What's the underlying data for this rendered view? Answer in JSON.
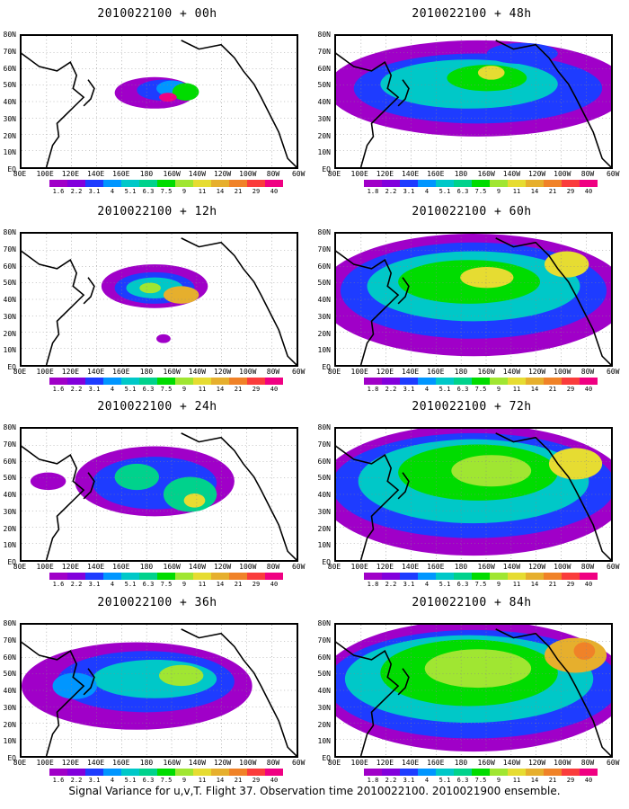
{
  "caption": "Signal Variance for u,v,T. Flight 37. Observation time 2010022100. 2010021900 ensemble.",
  "axes": {
    "y_labels": [
      "80N",
      "70N",
      "60N",
      "50N",
      "40N",
      "30N",
      "20N",
      "10N",
      "EQ"
    ],
    "x_labels": [
      "80E",
      "100E",
      "120E",
      "140E",
      "160E",
      "180",
      "160W",
      "140W",
      "120W",
      "100W",
      "80W",
      "60W"
    ]
  },
  "colorbar": {
    "labels": [
      "1.8",
      "2.2",
      "3.1",
      "4",
      "5.1",
      "6.3",
      "7.5",
      "9",
      "11",
      "14",
      "21",
      "29",
      "40"
    ],
    "left_colorbar_first_label": "1.6",
    "colors": [
      "#a000c8",
      "#8200dc",
      "#1e3cff",
      "#0096ff",
      "#00c8c8",
      "#00d28c",
      "#00dc00",
      "#a0e632",
      "#e6dc32",
      "#e6af2d",
      "#f08228",
      "#fa3c3c",
      "#f00082"
    ]
  },
  "panels": [
    {
      "title": "2010022100 + 00h"
    },
    {
      "title": "2010022100 + 12h"
    },
    {
      "title": "2010022100 + 24h"
    },
    {
      "title": "2010022100 + 36h"
    },
    {
      "title": "2010022100 + 48h"
    },
    {
      "title": "2010022100 + 60h"
    },
    {
      "title": "2010022100 + 72h"
    },
    {
      "title": "2010022100 + 84h"
    }
  ],
  "chart_data": {
    "type": "heatmap",
    "x_range": [
      "80E",
      "60W"
    ],
    "y_range": [
      "EQ",
      "80N"
    ],
    "color_levels": [
      1.6,
      1.8,
      2.2,
      3.1,
      4,
      5.1,
      6.3,
      7.5,
      9,
      11,
      14,
      21,
      29,
      40
    ],
    "forecast_hours": [
      "00h",
      "12h",
      "24h",
      "36h",
      "48h",
      "60h",
      "72h",
      "84h"
    ],
    "observation_time": "2010022100"
  }
}
